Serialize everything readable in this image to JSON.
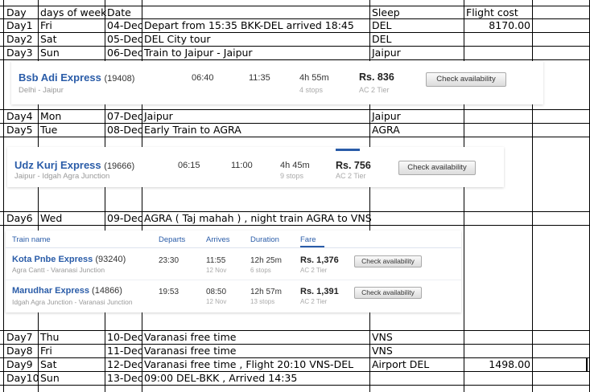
{
  "sheet": {
    "header": {
      "day": "Day",
      "dow": "days of week",
      "date": "Date",
      "sleep": "Sleep",
      "flight": "Flight cost"
    },
    "rows": [
      {
        "day": "Day1",
        "dow": "Fri",
        "date": "04-Dec",
        "activity": "Depart from 15:35 BKK-DEL arrived 18:45",
        "sleep": "DEL",
        "flight": "8170.00"
      },
      {
        "day": "Day2",
        "dow": "Sat",
        "date": "05-Dec",
        "activity": "DEL City tour",
        "sleep": "DEL",
        "flight": ""
      },
      {
        "day": "Day3",
        "dow": "Sun",
        "date": "06-Dec",
        "activity": "Train to Jaipur - Jaipur",
        "sleep": "Jaipur",
        "flight": ""
      },
      {
        "day": "Day4",
        "dow": "Mon",
        "date": "07-Dec",
        "activity": "Jaipur",
        "sleep": "Jaipur",
        "flight": ""
      },
      {
        "day": "Day5",
        "dow": "Tue",
        "date": "08-Dec",
        "activity": "Early Train to AGRA",
        "sleep": "AGRA",
        "flight": ""
      },
      {
        "day": "Day6",
        "dow": "Wed",
        "date": "09-Dec",
        "activity": "AGRA ( Taj mahah ) , night train AGRA  to VNS",
        "sleep": "",
        "flight": ""
      },
      {
        "day": "Day7",
        "dow": "Thu",
        "date": "10-Dec",
        "activity": "Varanasi free time",
        "sleep": "VNS",
        "flight": ""
      },
      {
        "day": "Day8",
        "dow": "Fri",
        "date": "11-Dec",
        "activity": "Varanasi free time",
        "sleep": "VNS",
        "flight": ""
      },
      {
        "day": "Day9",
        "dow": "Sat",
        "date": "12-Dec",
        "activity": "Varanasi free time  , Flight 20:10 VNS-DEL",
        "sleep": "Airport DEL",
        "flight": "1498.00"
      },
      {
        "day": "Day10",
        "dow": "Sun",
        "date": "13-Dec",
        "activity": "09:00 DEL-BKK , Arrived 14:35",
        "sleep": "",
        "flight": ""
      }
    ]
  },
  "train_pane_1": {
    "name": "Bsb Adi Express",
    "number": "(19408)",
    "route": "Delhi - Jaipur",
    "depart": "06:40",
    "arrive": "11:35",
    "duration": "4h 55m",
    "stops": "4 stops",
    "fare": "Rs. 836",
    "class": "AC 2 Tier",
    "button": "Check availability"
  },
  "train_pane_2": {
    "name": "Udz Kurj Express",
    "number": "(19666)",
    "route": "Jaipur - Idgah Agra Junction",
    "depart": "06:15",
    "arrive": "11:00",
    "duration": "4h 45m",
    "stops": "9 stops",
    "fare": "Rs. 756",
    "class": "AC 2 Tier",
    "button": "Check availability"
  },
  "train_pane_3": {
    "headers": {
      "name": "Train name",
      "departs": "Departs",
      "arrives": "Arrives",
      "duration": "Duration",
      "fare": "Fare"
    },
    "trains": [
      {
        "name": "Kota Pnbe Express",
        "number": "(93240)",
        "route": "Agra Cantt - Varanasi Junction",
        "depart": "23:30",
        "arrive": "11:55",
        "arrive_date": "12 Nov",
        "duration": "12h 25m",
        "stops": "6 stops",
        "fare": "Rs. 1,376",
        "class": "AC 2 Tier",
        "button": "Check availability"
      },
      {
        "name": "Marudhar Express",
        "number": "(14866)",
        "route": "Idgah Agra Junction - Varanasi Junction",
        "depart": "19:53",
        "arrive": "08:50",
        "arrive_date": "12 Nov",
        "duration": "12h 57m",
        "stops": "13 stops",
        "fare": "Rs. 1,391",
        "class": "AC 2 Tier",
        "button": "Check availability"
      }
    ]
  },
  "colors": {
    "link_blue": "#2a5ca8",
    "grid_line": "#000000"
  }
}
